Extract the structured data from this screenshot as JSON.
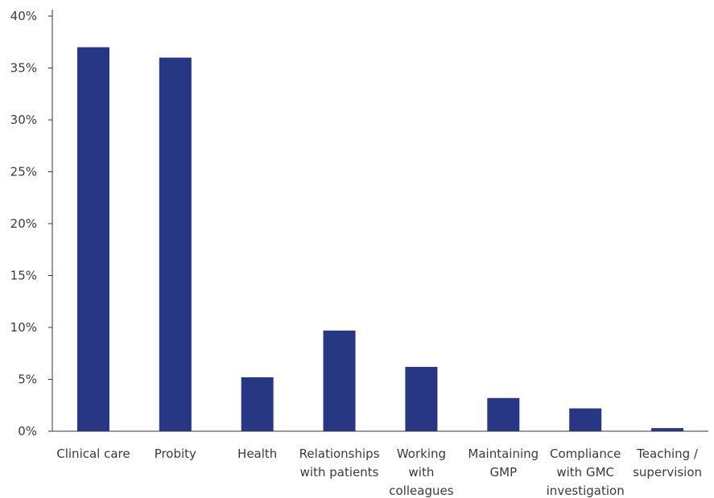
{
  "chart_data": {
    "type": "bar",
    "title": "",
    "xlabel": "",
    "ylabel": "",
    "categories": [
      [
        "Clinical care"
      ],
      [
        "Probity"
      ],
      [
        "Health"
      ],
      [
        "Relationships",
        "with patients"
      ],
      [
        "Working",
        "with",
        "colleagues"
      ],
      [
        "Maintaining",
        "GMP"
      ],
      [
        "Compliance",
        "with GMC",
        "investigation"
      ],
      [
        "Teaching /",
        "supervision"
      ]
    ],
    "values": [
      37,
      36,
      5.2,
      9.7,
      6.2,
      3.2,
      2.2,
      0.3
    ],
    "value_format": "percent",
    "ylim": [
      0,
      40
    ],
    "yticks": [
      "0%",
      "5%",
      "10%",
      "15%",
      "20%",
      "25%",
      "30%",
      "35%",
      "40%"
    ],
    "ytick_values": [
      0,
      5,
      10,
      15,
      20,
      25,
      30,
      35,
      40
    ],
    "grid": false,
    "legend": "none",
    "bar_color": "#283783"
  }
}
